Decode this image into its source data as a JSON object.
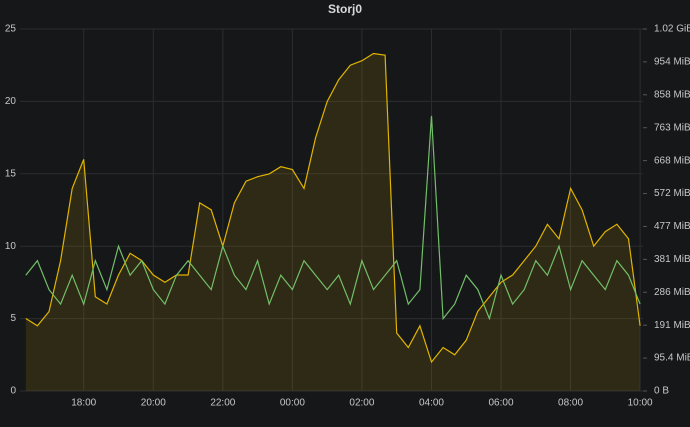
{
  "chart_data": {
    "type": "line",
    "title": "Storj0",
    "x": [
      "16:20",
      "16:40",
      "17:00",
      "17:20",
      "17:40",
      "18:00",
      "18:20",
      "18:40",
      "19:00",
      "19:20",
      "19:40",
      "20:00",
      "20:20",
      "20:40",
      "21:00",
      "21:20",
      "21:40",
      "22:00",
      "22:20",
      "22:40",
      "23:00",
      "23:20",
      "23:40",
      "00:00",
      "00:20",
      "00:40",
      "01:00",
      "01:20",
      "01:40",
      "02:00",
      "02:20",
      "02:40",
      "03:00",
      "03:20",
      "03:40",
      "04:00",
      "04:20",
      "04:40",
      "05:00",
      "05:20",
      "05:40",
      "06:00",
      "06:20",
      "06:40",
      "07:00",
      "07:20",
      "07:40",
      "08:00",
      "08:20",
      "08:40",
      "09:00",
      "09:20",
      "09:40",
      "10:00"
    ],
    "xlim": [
      "16:10",
      "10:05"
    ],
    "xticks": [
      "18:00",
      "20:00",
      "22:00",
      "00:00",
      "02:00",
      "04:00",
      "06:00",
      "08:00",
      "10:00"
    ],
    "ylim": [
      0,
      25
    ],
    "yticks": [
      0,
      5,
      10,
      15,
      20,
      25
    ],
    "y2lim": [
      0,
      1049
    ],
    "y2ticks": [
      {
        "value": 0,
        "label": "0 B"
      },
      {
        "value": 95.4,
        "label": "95.4 MiB"
      },
      {
        "value": 190.7,
        "label": "191 MiB"
      },
      {
        "value": 286.1,
        "label": "286 MiB"
      },
      {
        "value": 381.5,
        "label": "381 MiB"
      },
      {
        "value": 476.8,
        "label": "477 MiB"
      },
      {
        "value": 572.2,
        "label": "572 MiB"
      },
      {
        "value": 667.6,
        "label": "668 MiB"
      },
      {
        "value": 762.9,
        "label": "763 MiB"
      },
      {
        "value": 858.3,
        "label": "858 MiB"
      },
      {
        "value": 953.7,
        "label": "954 MiB"
      },
      {
        "value": 1049,
        "label": "1.02 GiB"
      }
    ],
    "grid": true,
    "series": [
      {
        "color": "#e0b400",
        "axis": "y2",
        "area": true,
        "values": [
          210,
          189,
          230,
          378,
          587,
          671,
          273,
          252,
          336,
          399,
          378,
          336,
          315,
          336,
          336,
          545,
          525,
          420,
          545,
          608,
          621,
          629,
          650,
          642,
          587,
          734,
          839,
          902,
          944,
          957,
          978,
          973,
          168,
          126,
          189,
          84,
          126,
          105,
          147,
          231,
          273,
          315,
          336,
          378,
          420,
          483,
          441,
          587,
          525,
          420,
          462,
          483,
          441,
          189
        ]
      },
      {
        "color": "#73bf69",
        "values": [
          8,
          9,
          7,
          6,
          8,
          6,
          9,
          7,
          10,
          8,
          9,
          7,
          6,
          8,
          9,
          8,
          7,
          10,
          8,
          7,
          9,
          6,
          8,
          7,
          9,
          8,
          7,
          8,
          6,
          9,
          7,
          8,
          9,
          6,
          7,
          19,
          5,
          6,
          8,
          7,
          5,
          8,
          6,
          7,
          9,
          8,
          10,
          7,
          9,
          8,
          7,
          9,
          8,
          6
        ]
      }
    ]
  }
}
